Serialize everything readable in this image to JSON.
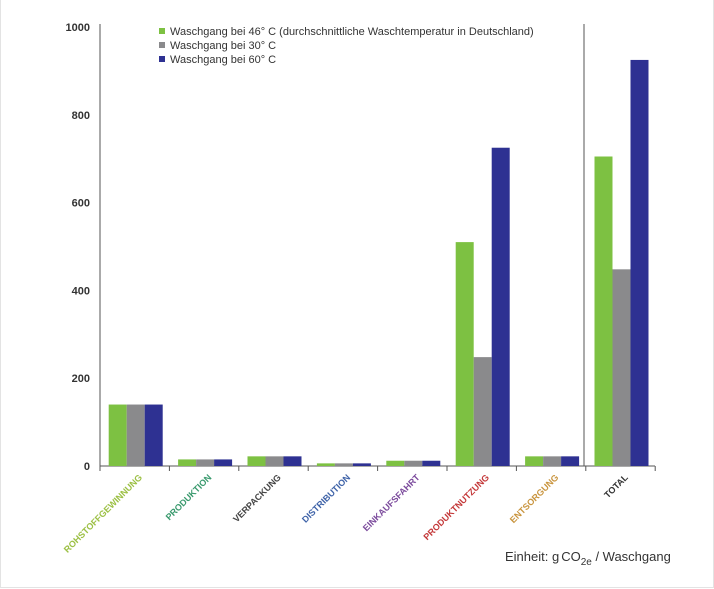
{
  "chart_data": {
    "type": "bar",
    "categories": [
      "ROHSTOFFGEWINNUNG",
      "PRODUKTION",
      "VERPACKUNG",
      "DISTRIBUTION",
      "EINKAUFSFAHRT",
      "PRODUKTNUTZUNG",
      "ENTSORGUNG",
      "TOTAL"
    ],
    "category_colors": [
      "#9cc044",
      "#3a9a6e",
      "#444444",
      "#3f63a8",
      "#7b4a9c",
      "#c4393a",
      "#c9953f",
      "#333333"
    ],
    "series": [
      {
        "name": "Waschgang bei 46° C (durchschnittliche Waschtemperatur in Deutschland)",
        "color": "#7dc142",
        "values": [
          140,
          15,
          22,
          6,
          12,
          510,
          22,
          705
        ]
      },
      {
        "name": "Waschgang bei 30° C",
        "color": "#8a8a8c",
        "values": [
          140,
          15,
          22,
          6,
          12,
          248,
          22,
          448
        ]
      },
      {
        "name": "Waschgang bei 60° C",
        "color": "#2e3192",
        "values": [
          140,
          15,
          22,
          6,
          12,
          725,
          22,
          925
        ]
      }
    ],
    "yticks": [
      "0",
      "200",
      "400",
      "600",
      "800",
      "1000"
    ],
    "ylim": [
      0,
      1000
    ],
    "legend_position": "top",
    "unit_label": {
      "prefix": "Einheit: g",
      "main": "CO",
      "sub": "2e",
      "suffix": " / Waschgang"
    }
  }
}
